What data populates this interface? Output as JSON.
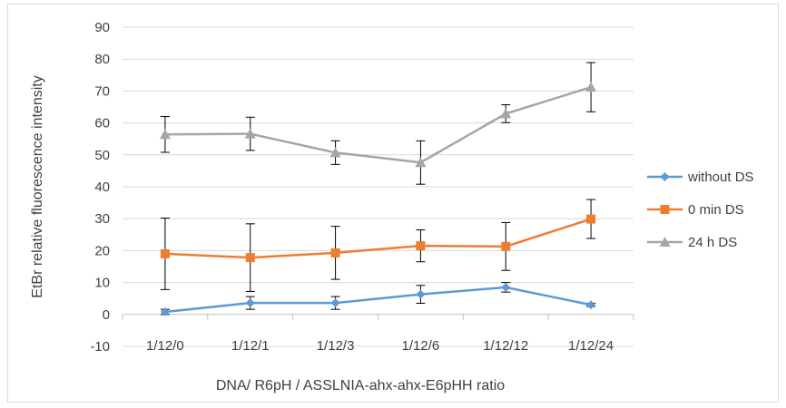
{
  "chart_data": {
    "type": "line",
    "categories": [
      "1/12/0",
      "1/12/1",
      "1/12/3",
      "1/12/6",
      "1/12/12",
      "1/12/24"
    ],
    "xlabel": "DNA/ R6pH / ASSLNIA-ahx-ahx-E6pHH ratio",
    "ylabel": "EtBr relative fluorescence intensity",
    "ylim": [
      -10,
      90
    ],
    "yticks": [
      90,
      80,
      70,
      60,
      50,
      40,
      30,
      20,
      10,
      0,
      -10
    ],
    "grid": true,
    "legend_position": "right",
    "series": [
      {
        "name": "without DS",
        "color": "#5b9bd5",
        "marker": "diamond",
        "values": [
          0.8,
          3.6,
          3.6,
          6.3,
          8.5,
          3.0
        ],
        "error": [
          0.8,
          2.0,
          2.0,
          2.8,
          1.5,
          0.5
        ]
      },
      {
        "name": "0 min DS",
        "color": "#ed7d31",
        "marker": "square",
        "values": [
          19.0,
          17.8,
          19.3,
          21.5,
          21.3,
          29.9
        ],
        "error": [
          11.2,
          10.6,
          8.3,
          5.0,
          7.5,
          6.1
        ]
      },
      {
        "name": "24 h DS",
        "color": "#a5a5a5",
        "marker": "triangle",
        "values": [
          56.4,
          56.6,
          50.7,
          47.6,
          62.9,
          71.2
        ],
        "error": [
          5.6,
          5.2,
          3.7,
          6.8,
          2.8,
          7.7
        ]
      }
    ]
  }
}
